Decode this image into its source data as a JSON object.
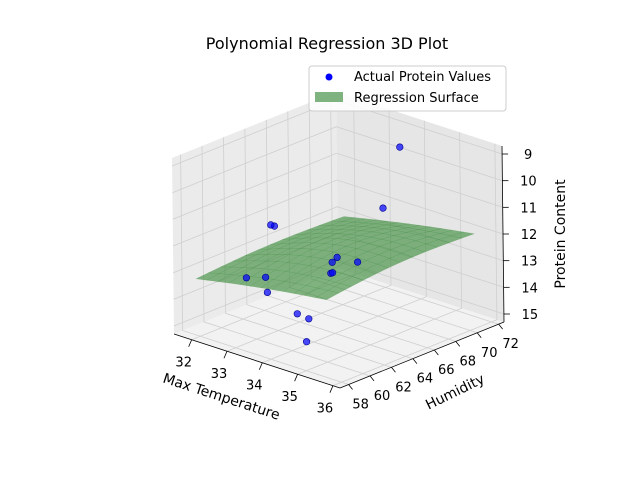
{
  "chart_data": {
    "type": "scatter",
    "title": "Polynomial Regression 3D Plot",
    "xlabel": "Max Temperature",
    "ylabel": "Humidity",
    "zlabel": "Protein Content",
    "x_ticks": [
      "32",
      "33",
      "34",
      "35",
      "36"
    ],
    "y_ticks": [
      "58",
      "60",
      "62",
      "64",
      "66",
      "68",
      "70",
      "72"
    ],
    "z_ticks": [
      "9",
      "10",
      "11",
      "12",
      "13",
      "14",
      "15"
    ],
    "xlim": [
      31.5,
      36.2
    ],
    "ylim": [
      57.2,
      72.5
    ],
    "zlim": [
      15.3,
      8.7
    ],
    "z_axis_inverted": true,
    "grid": true,
    "legend_position": "upper-right",
    "legend": [
      {
        "label": "Actual Protein Values",
        "marker": "dot",
        "color": "#0000ff"
      },
      {
        "label": "Regression Surface",
        "marker": "patch",
        "color": "#3a8a3a"
      }
    ],
    "series": [
      {
        "name": "Actual Protein Values",
        "color": "#0000ff",
        "points": [
          {
            "x": 35.4,
            "y": 64.0,
            "z": 10.0
          },
          {
            "x": 33.6,
            "y": 71.5,
            "z": 9.7
          },
          {
            "x": 35.0,
            "y": 58.3,
            "z": 13.4
          },
          {
            "x": 34.6,
            "y": 64.2,
            "z": 12.4
          },
          {
            "x": 34.2,
            "y": 63.0,
            "z": 12.8
          },
          {
            "x": 34.0,
            "y": 63.8,
            "z": 12.6
          },
          {
            "x": 34.2,
            "y": 63.6,
            "z": 12.3
          },
          {
            "x": 34.1,
            "y": 63.5,
            "z": 12.9
          },
          {
            "x": 34.0,
            "y": 60.5,
            "z": 14.0
          },
          {
            "x": 34.5,
            "y": 59.7,
            "z": 14.7
          },
          {
            "x": 32.7,
            "y": 62.0,
            "z": 14.0
          },
          {
            "x": 32.5,
            "y": 62.5,
            "z": 13.6
          },
          {
            "x": 32.0,
            "y": 65.0,
            "z": 12.3
          },
          {
            "x": 31.9,
            "y": 65.0,
            "z": 12.3
          },
          {
            "x": 31.8,
            "y": 63.0,
            "z": 14.0
          }
        ]
      }
    ],
    "surface": {
      "name": "Regression Surface",
      "color": "#3a8a3a",
      "formula": "polynomial",
      "corner_values": {
        "x_max_y_min": 12.3,
        "x_max_y_max": 12.0,
        "x_min_y_min": 13.3,
        "x_min_y_max": 13.2
      }
    }
  }
}
